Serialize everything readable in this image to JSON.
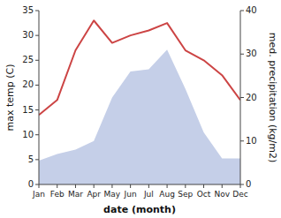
{
  "chart_data": {
    "type": "line",
    "xlabel": "date (month)",
    "ylabel": "max temp (C)",
    "y2label": "med. precipitation (kg/m2)",
    "categories": [
      "Jan",
      "Feb",
      "Mar",
      "Apr",
      "May",
      "Jun",
      "Jul",
      "Aug",
      "Sep",
      "Oct",
      "Nov",
      "Dec"
    ],
    "series": [
      {
        "type": "area",
        "color": "#c5cfe8",
        "axis": "y2",
        "values": [
          5.5,
          7,
          8,
          10,
          20,
          26,
          26.5,
          31,
          22,
          12,
          6,
          6
        ]
      },
      {
        "type": "line",
        "color": "#cc4444",
        "values": [
          14,
          17,
          27,
          33,
          28.5,
          30,
          31,
          32.5,
          27,
          25,
          22,
          17
        ]
      }
    ],
    "ylim": [
      0,
      35
    ],
    "yticks": [
      0,
      5,
      10,
      15,
      20,
      25,
      30,
      35
    ],
    "y2lim": [
      0,
      40
    ],
    "y2ticks": [
      0,
      10,
      20,
      30,
      40
    ],
    "grid": false
  }
}
